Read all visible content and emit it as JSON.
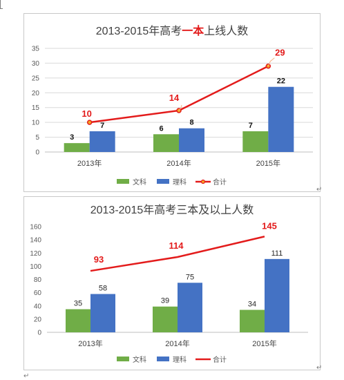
{
  "colors": {
    "wenke": "#70ad47",
    "like": "#4472c4",
    "total": "#e31b1b",
    "axis_text": "#595959"
  },
  "return_mark": "↵",
  "chart_data": [
    {
      "type": "bar",
      "title": "2013-2015年高考一本上线人数",
      "title_parts": {
        "before": "2013-2015年高考",
        "highlight": "一本",
        "after": "上线人数"
      },
      "categories": [
        "2013年",
        "2014年",
        "2015年"
      ],
      "ylim": [
        0,
        35
      ],
      "yticks": [
        0,
        5,
        10,
        15,
        20,
        25,
        30,
        35
      ],
      "grid": true,
      "legend_position": "bottom",
      "series": [
        {
          "name": "文科",
          "type": "bar",
          "values": [
            3,
            6,
            7
          ]
        },
        {
          "name": "理科",
          "type": "bar",
          "values": [
            7,
            8,
            22
          ]
        },
        {
          "name": "合计",
          "type": "line",
          "values": [
            10,
            14,
            29
          ]
        }
      ]
    },
    {
      "type": "bar",
      "title": "2013-2015年高考三本及以上人数",
      "categories": [
        "2013年",
        "2014年",
        "2015年"
      ],
      "ylim": [
        0,
        160
      ],
      "yticks": [
        0,
        20,
        40,
        60,
        80,
        100,
        120,
        140,
        160
      ],
      "grid": false,
      "legend_position": "bottom",
      "series": [
        {
          "name": "文科",
          "type": "bar",
          "values": [
            35,
            39,
            34
          ]
        },
        {
          "name": "理科",
          "type": "bar",
          "values": [
            58,
            75,
            111
          ]
        },
        {
          "name": "合计",
          "type": "line",
          "values": [
            93,
            114,
            145
          ]
        }
      ]
    }
  ]
}
